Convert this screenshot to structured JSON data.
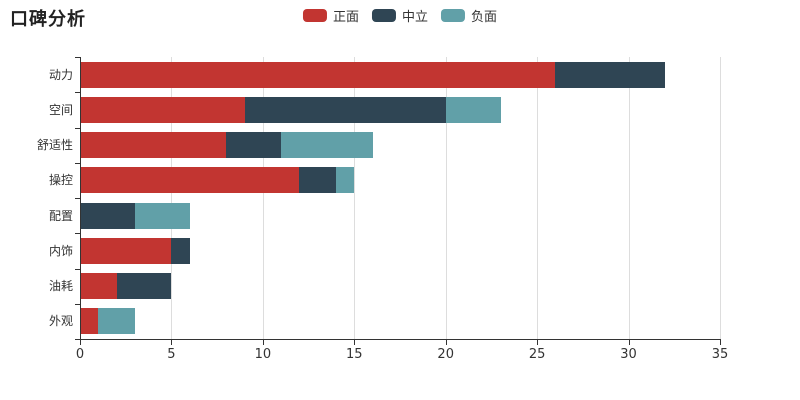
{
  "title": "口碑分析",
  "legend": {
    "items": [
      {
        "id": "positive",
        "label": "正面",
        "color": "#c23531"
      },
      {
        "id": "neutral",
        "label": "中立",
        "color": "#2f4554"
      },
      {
        "id": "negative",
        "label": "负面",
        "color": "#61a0a8"
      }
    ]
  },
  "colors": {
    "background": "#ffffff",
    "axis": "#333333",
    "grid": "#dddddd",
    "text": "#333333",
    "title_text": "#222222"
  },
  "chart_data": {
    "type": "bar",
    "orientation": "horizontal",
    "stacked": true,
    "title": "口碑分析",
    "xlabel": "",
    "ylabel": "",
    "xlim": [
      0,
      35
    ],
    "x_ticks": [
      0,
      5,
      10,
      15,
      20,
      25,
      30,
      35
    ],
    "grid": true,
    "legend_position": "top",
    "categories": [
      "动力",
      "空间",
      "舒适性",
      "操控",
      "配置",
      "内饰",
      "油耗",
      "外观"
    ],
    "series": [
      {
        "name": "正面",
        "color": "#c23531",
        "values": [
          26,
          9,
          8,
          12,
          0,
          5,
          2,
          1
        ]
      },
      {
        "name": "中立",
        "color": "#2f4554",
        "values": [
          6,
          11,
          3,
          2,
          3,
          1,
          3,
          0
        ]
      },
      {
        "name": "负面",
        "color": "#61a0a8",
        "values": [
          0,
          3,
          5,
          1,
          3,
          0,
          0,
          2
        ]
      }
    ],
    "totals": [
      32,
      23,
      16,
      15,
      6,
      6,
      5,
      3
    ]
  }
}
